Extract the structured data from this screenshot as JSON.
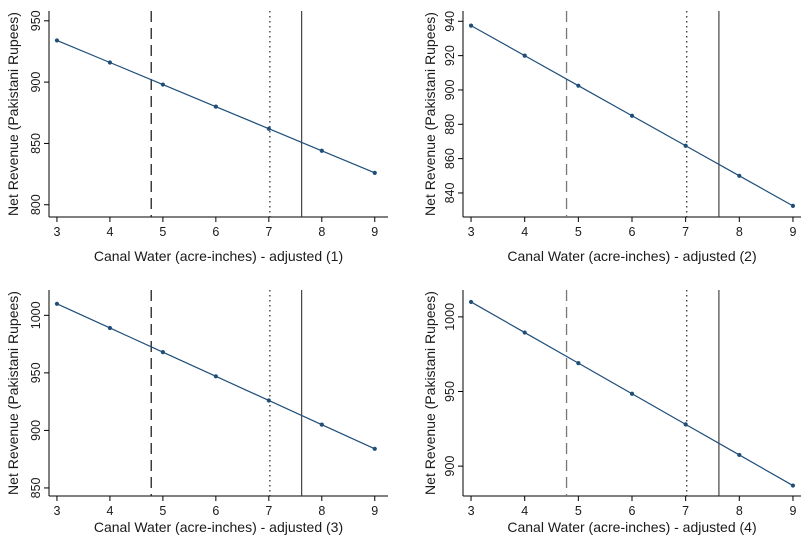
{
  "chart_data": [
    {
      "type": "line",
      "xlabel": "Canal Water (acre-inches) - adjusted (1)",
      "ylabel": "Net Revenue (Pakistani Rupees)",
      "x": [
        3,
        4,
        5,
        6,
        7,
        8,
        9
      ],
      "series": [
        {
          "values": [
            934,
            916,
            898,
            880,
            862,
            844,
            826
          ],
          "color": "#1f4e79"
        }
      ],
      "xlim": [
        2.85,
        9.25
      ],
      "ylim": [
        790,
        958
      ],
      "xticks": [
        3,
        4,
        5,
        6,
        7,
        8,
        9
      ],
      "yticks": [
        800,
        850,
        900,
        950
      ],
      "reference_lines": [
        {
          "x": 4.78,
          "style": "dashed",
          "color": "#222222"
        },
        {
          "x": 7.02,
          "style": "dotted",
          "color": "#333333"
        },
        {
          "x": 7.62,
          "style": "solid",
          "color": "#333333"
        }
      ],
      "grid": false,
      "legend": "none"
    },
    {
      "type": "line",
      "xlabel": "Canal Water (acre-inches) - adjusted (2)",
      "ylabel": "Net Revenue (Pakistani Rupees)",
      "x": [
        3,
        4,
        5,
        6,
        7,
        8,
        9
      ],
      "series": [
        {
          "values": [
            937.5,
            920,
            902.5,
            885,
            867.5,
            850,
            832.5
          ],
          "color": "#1f4e79"
        }
      ],
      "xlim": [
        2.85,
        9.15
      ],
      "ylim": [
        826,
        946
      ],
      "xticks": [
        3,
        4,
        5,
        6,
        7,
        8,
        9
      ],
      "yticks": [
        840,
        860,
        880,
        900,
        920,
        940
      ],
      "reference_lines": [
        {
          "x": 4.78,
          "style": "dashed",
          "color": "#777777"
        },
        {
          "x": 7.02,
          "style": "dotted",
          "color": "#333333"
        },
        {
          "x": 7.62,
          "style": "solid",
          "color": "#333333"
        }
      ],
      "grid": false,
      "legend": "none"
    },
    {
      "type": "line",
      "xlabel": "Canal Water (acre-inches) - adjusted (3)",
      "ylabel": "Net Revenue (Pakistani Rupees)",
      "x": [
        3,
        4,
        5,
        6,
        7,
        8,
        9
      ],
      "series": [
        {
          "values": [
            1010,
            989,
            968,
            947,
            926,
            905,
            884
          ],
          "color": "#1f4e79"
        }
      ],
      "xlim": [
        2.85,
        9.25
      ],
      "ylim": [
        843,
        1022
      ],
      "xticks": [
        3,
        4,
        5,
        6,
        7,
        8,
        9
      ],
      "yticks": [
        850,
        900,
        950,
        1000
      ],
      "reference_lines": [
        {
          "x": 4.78,
          "style": "dashed",
          "color": "#222222"
        },
        {
          "x": 7.02,
          "style": "dotted",
          "color": "#333333"
        },
        {
          "x": 7.62,
          "style": "solid",
          "color": "#333333"
        }
      ],
      "grid": false,
      "legend": "none"
    },
    {
      "type": "line",
      "xlabel": "Canal Water (acre-inches) - adjusted (4)",
      "ylabel": "Net Revenue (Pakistani Rupees)",
      "x": [
        3,
        4,
        5,
        6,
        7,
        8,
        9
      ],
      "series": [
        {
          "values": [
            1010,
            989.5,
            969,
            948.5,
            928,
            907.5,
            887
          ],
          "color": "#1f4e79"
        }
      ],
      "xlim": [
        2.85,
        9.15
      ],
      "ylim": [
        880,
        1018
      ],
      "xticks": [
        3,
        4,
        5,
        6,
        7,
        8,
        9
      ],
      "yticks": [
        900,
        950,
        1000
      ],
      "reference_lines": [
        {
          "x": 4.78,
          "style": "dashed",
          "color": "#777777"
        },
        {
          "x": 7.02,
          "style": "dotted",
          "color": "#333333"
        },
        {
          "x": 7.62,
          "style": "solid",
          "color": "#333333"
        }
      ],
      "grid": false,
      "legend": "none"
    }
  ]
}
